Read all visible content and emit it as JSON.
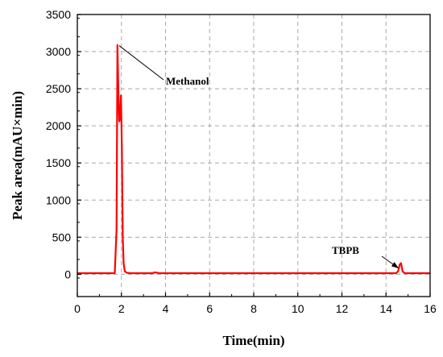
{
  "chart_data": {
    "type": "line",
    "xlabel": "Time(min)",
    "ylabel": "Peak area(mAU×min)",
    "xlim": [
      0,
      16
    ],
    "ylim": [
      -300,
      3500
    ],
    "xticks": [
      0,
      2,
      4,
      6,
      8,
      10,
      12,
      14,
      16
    ],
    "yticks": [
      0,
      500,
      1000,
      1500,
      2000,
      2500,
      3000,
      3500
    ],
    "grid": true,
    "line_color": "#ff0000",
    "series": [
      {
        "x": [
          0,
          1.7,
          1.78,
          1.82,
          1.86,
          1.9,
          1.94,
          1.98,
          2.02,
          2.06,
          2.1,
          2.15,
          2.25,
          2.4,
          3.4,
          3.5,
          3.6,
          3.7,
          14.45,
          14.55,
          14.62,
          14.68,
          14.75,
          14.85,
          16
        ],
        "y": [
          15,
          15,
          600,
          3090,
          2500,
          2060,
          2100,
          2410,
          1700,
          500,
          150,
          40,
          20,
          15,
          15,
          25,
          22,
          15,
          15,
          40,
          130,
          150,
          40,
          15,
          15
        ]
      }
    ],
    "annotations": [
      {
        "text": "Methanol",
        "x": 1.9,
        "y": 3080
      },
      {
        "text": "TBPB",
        "x": 14.58,
        "y": 80
      }
    ]
  }
}
